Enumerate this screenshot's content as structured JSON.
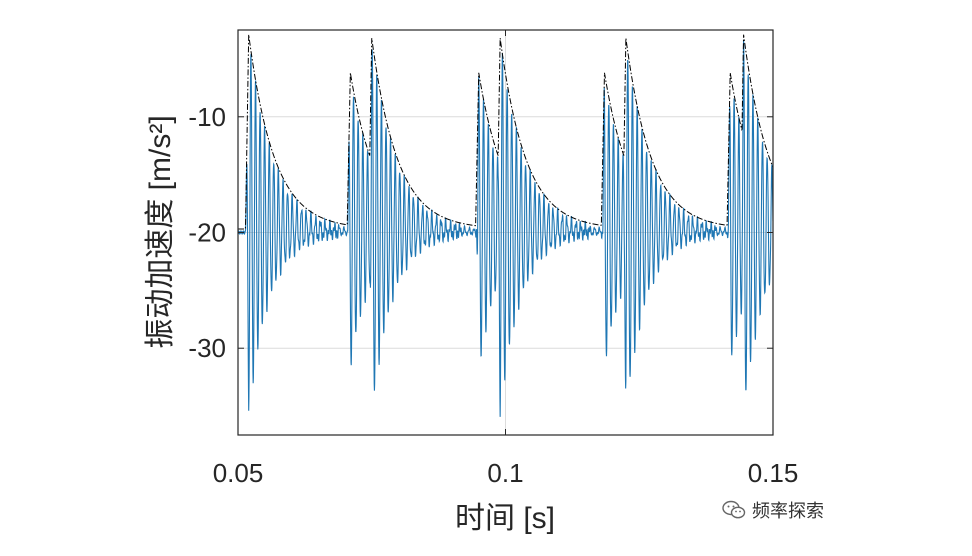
{
  "chart_data": {
    "type": "line",
    "title": "",
    "xlabel": "时间 [s]",
    "ylabel": "振动加速度 [m/s²]",
    "xlim": [
      0.05,
      0.15
    ],
    "ylim": [
      -37.5,
      -2.5
    ],
    "xticks": [
      0.05,
      0.1,
      0.15
    ],
    "xtick_labels": [
      "0.05",
      "0.1",
      "0.15"
    ],
    "yticks": [
      -10,
      -20,
      -30
    ],
    "ytick_labels": [
      "-10",
      "-20",
      "-30"
    ],
    "grid": true,
    "impact_times": [
      0.052,
      0.071,
      0.075,
      0.095,
      0.099,
      0.1185,
      0.1225,
      0.142,
      0.1445
    ],
    "baseline": -20.0,
    "series": [
      {
        "style": "solid",
        "color": "#1f77b4",
        "envelope_peaks": [
          {
            "x": 0.052,
            "max": -3.2,
            "min": -35.8
          },
          {
            "x": 0.071,
            "max": -6.5,
            "min": -31.8
          },
          {
            "x": 0.075,
            "max": -3.5,
            "min": -35.8
          },
          {
            "x": 0.095,
            "max": -6.5,
            "min": -31.8
          },
          {
            "x": 0.099,
            "max": -3.5,
            "min": -35.8
          },
          {
            "x": 0.1185,
            "max": -6.5,
            "min": -31.8
          },
          {
            "x": 0.1225,
            "max": -3.5,
            "min": -35.8
          },
          {
            "x": 0.142,
            "max": -6.5,
            "min": -31.8
          },
          {
            "x": 0.1445,
            "max": -3.2,
            "min": -35.8
          }
        ]
      },
      {
        "style": "dash-dot",
        "color": "#000000",
        "description_type": "upper envelope"
      }
    ]
  },
  "watermark": {
    "text": "频率探索",
    "icon": "wechat-icon"
  }
}
